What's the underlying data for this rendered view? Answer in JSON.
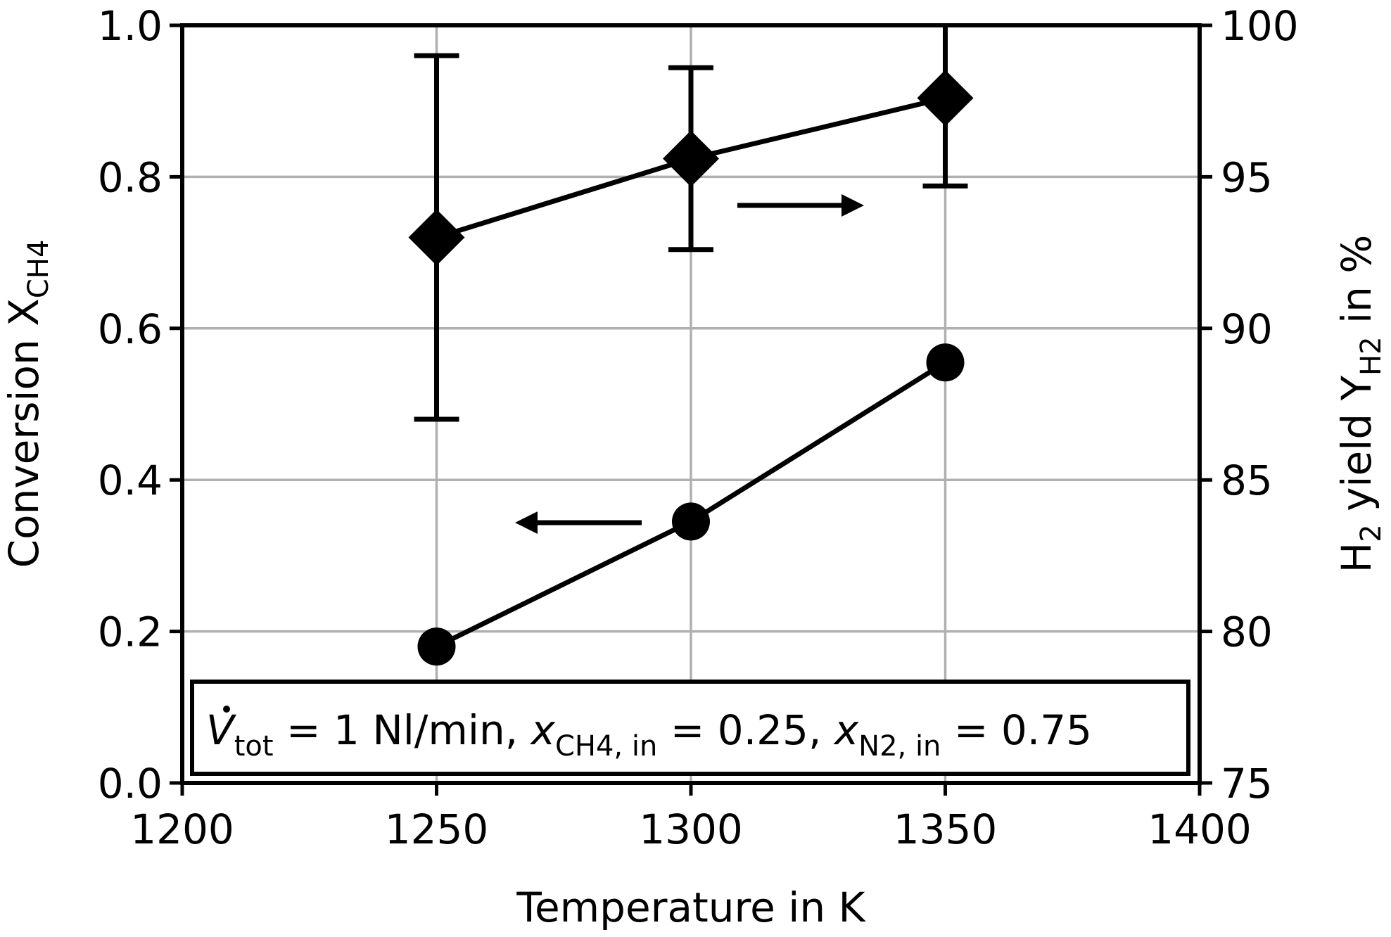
{
  "chart_data": {
    "type": "line",
    "xlabel": "Temperature in K",
    "ylabel_left": {
      "main": "Conversion X",
      "sub": "CH4"
    },
    "ylabel_right": {
      "pre": "H",
      "sub1": "2",
      "mid": " yield Y",
      "sub2": "H2",
      "post": " in %"
    },
    "xlim": [
      1200,
      1400
    ],
    "ylim_left": [
      0.0,
      1.0
    ],
    "ylim_right": [
      75,
      100
    ],
    "x_ticks": [
      "1200",
      "1250",
      "1300",
      "1350",
      "1400"
    ],
    "y_left_ticks": [
      "0.0",
      "0.2",
      "0.4",
      "0.6",
      "0.8",
      "1.0"
    ],
    "y_right_ticks": [
      "75",
      "80",
      "85",
      "90",
      "95",
      "100"
    ],
    "grid": true,
    "series": [
      {
        "axis": "left",
        "marker": "circle",
        "x": [
          1250,
          1300,
          1350
        ],
        "y": [
          0.18,
          0.345,
          0.555
        ]
      },
      {
        "axis": "right",
        "marker": "diamond",
        "x": [
          1250,
          1300,
          1350
        ],
        "y": [
          93.0,
          95.6,
          97.6
        ],
        "err_low": [
          87.0,
          92.6,
          94.7
        ],
        "err_high": [
          99.0,
          98.6,
          100.0
        ]
      }
    ],
    "annotation": {
      "v": "V",
      "v_sub": "tot",
      "t1": " = 1 Nl/min, ",
      "x1": "x",
      "x1_sub": "CH4, in",
      "t2": " = 0.25, ",
      "x2": "x",
      "x2_sub": "N2, in",
      "t3": " = 0.75"
    }
  }
}
